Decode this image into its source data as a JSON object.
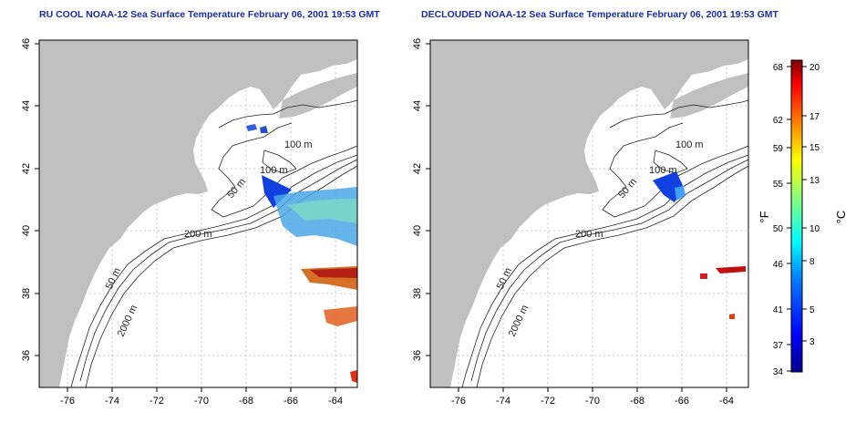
{
  "left_panel": {
    "title": "RU COOL NOAA-12 Sea Surface Temperature February 06, 2001 19:53 GMT"
  },
  "right_panel": {
    "title": "DECLOUDED NOAA-12 Sea Surface Temperature February 06, 2001 19:53 GMT"
  },
  "axes": {
    "lon_ticks": [
      "-76",
      "-74",
      "-72",
      "-70",
      "-68",
      "-66",
      "-64"
    ],
    "lat_ticks": [
      "36",
      "38",
      "40",
      "42",
      "44",
      "46"
    ]
  },
  "contour_labels": [
    "100 m",
    "100 m",
    "50 m",
    "200 m",
    "50 m",
    "2000 m"
  ],
  "colorbar": {
    "f_label": "°F",
    "c_label": "°C",
    "f_ticks": [
      "68",
      "62",
      "59",
      "55",
      "50",
      "46",
      "41",
      "37",
      "34"
    ],
    "c_ticks": [
      "20",
      "17",
      "15",
      "13",
      "10",
      "8",
      "5",
      "3"
    ],
    "colors": [
      "#00008f",
      "#0000ff",
      "#0080ff",
      "#00ffff",
      "#80ff80",
      "#ffff00",
      "#ff8000",
      "#ff0000",
      "#800000"
    ]
  },
  "colors": {
    "land": "#c0c0c0",
    "title": "#1a2aa8",
    "grid": "#b8b8b8"
  }
}
